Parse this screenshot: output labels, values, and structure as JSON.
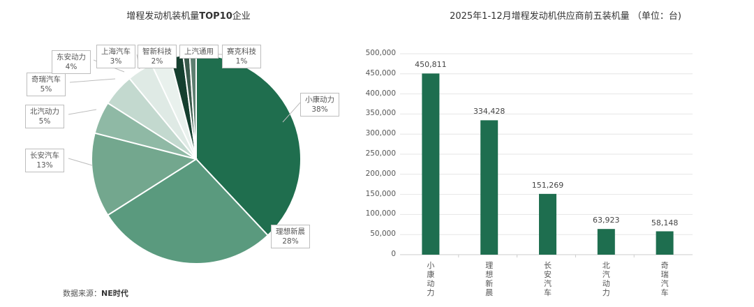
{
  "chart_data": [
    {
      "type": "pie",
      "title": "增程发动机装机量TOP10企业",
      "categories": [
        "小康动力",
        "理想新晨",
        "长安汽车",
        "北汽动力",
        "奇瑞汽车",
        "东安动力",
        "上海汽车",
        "智新科技",
        "上汽通用",
        "赛克科技"
      ],
      "values": [
        38,
        28,
        13,
        5,
        5,
        4,
        3,
        2,
        1,
        1
      ],
      "unit": "%",
      "labels": [
        "38%",
        "28%",
        "13%",
        "5%",
        "5%",
        "4%",
        "3%",
        "2%",
        "",
        "1%"
      ],
      "colors": [
        "#1f6e4e",
        "#5a9a7e",
        "#73a78e",
        "#8fb9a5",
        "#c3d9cf",
        "#dfeae5",
        "#e9f1ed",
        "#153f2f",
        "#3a5a4c",
        "#5e7f71"
      ],
      "source": "数据来源：NE时代"
    },
    {
      "type": "bar",
      "title": "2025年1-12月增程发动机供应商前五装机量 （单位：台)",
      "categories": [
        "小康动力",
        "理想新晨",
        "长安汽车",
        "北汽动力",
        "奇瑞汽车"
      ],
      "values": [
        450811,
        334428,
        151269,
        63923,
        58148
      ],
      "value_labels": [
        "450,811",
        "334,428",
        "151,269",
        "63,923",
        "58,148"
      ],
      "ylim": [
        0,
        500000
      ],
      "yticks": [
        "0",
        "50,000",
        "100,000",
        "150,000",
        "200,000",
        "250,000",
        "300,000",
        "350,000",
        "400,000",
        "450,000",
        "500,000"
      ],
      "grid": true,
      "bar_color": "#1e6e4f",
      "xlabel": "",
      "ylabel": ""
    }
  ],
  "left": {
    "title_prefix": "增程发动机装机量",
    "title_bold": "TOP10",
    "title_suffix": "企业",
    "source_prefix": "数据来源：",
    "source_bold": "NE时代"
  },
  "right": {
    "title": "2025年1-12月增程发动机供应商前五装机量 （单位：台)"
  }
}
